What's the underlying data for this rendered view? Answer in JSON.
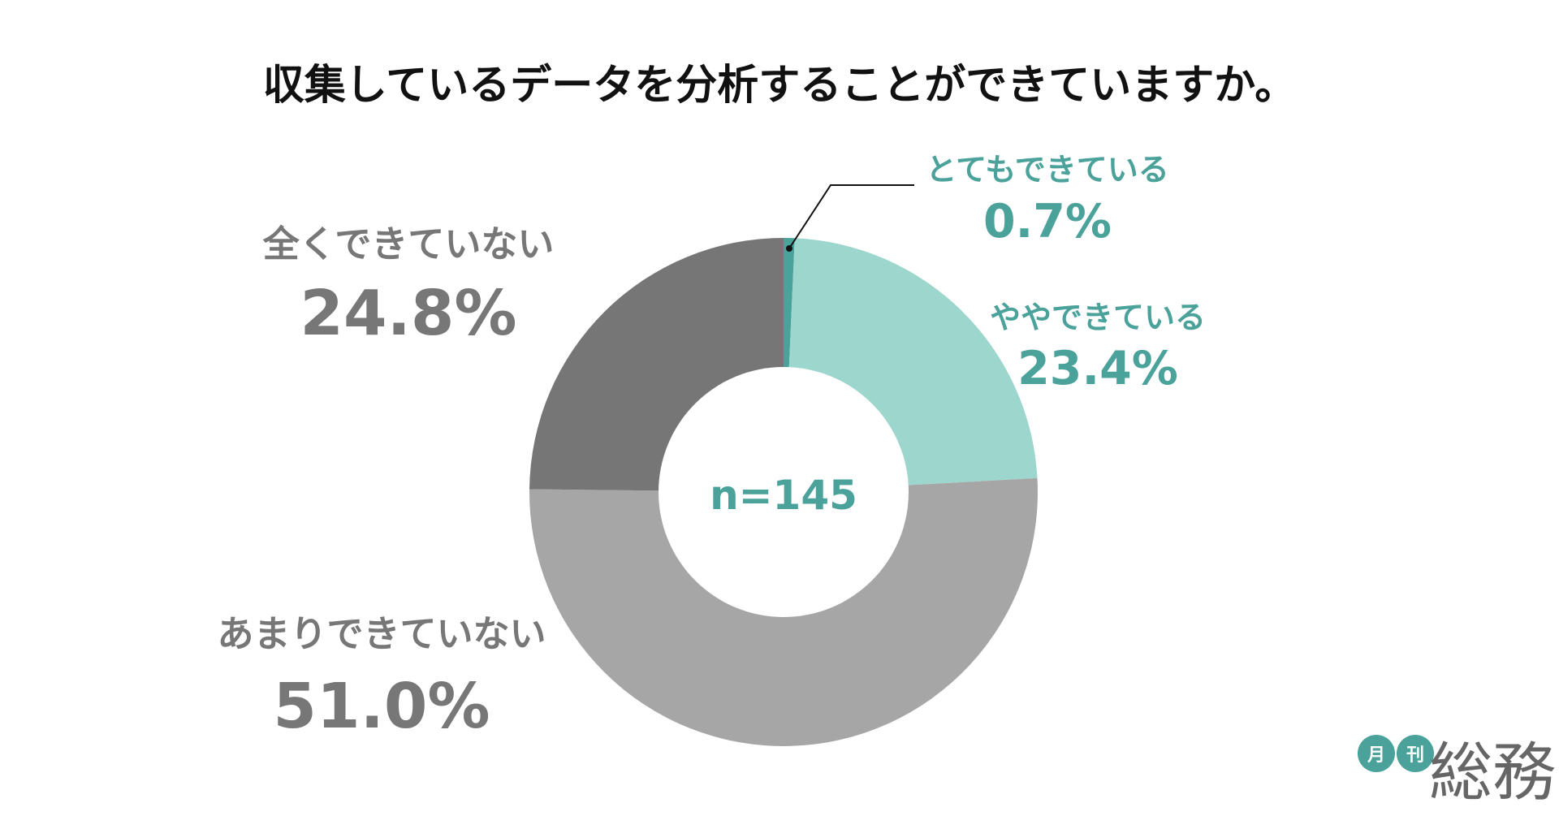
{
  "chart_data": {
    "type": "pie",
    "title": "収集しているデータを分析することができていますか。",
    "center_label": "n=145",
    "slices": [
      {
        "label": "とてもできている",
        "value": 0.7,
        "display": "0.7%",
        "color": "#4aa29b",
        "label_color": "#4aa29b"
      },
      {
        "label": "ややできている",
        "value": 23.4,
        "display": "23.4%",
        "color": "#9cd6cd",
        "label_color": "#4aa29b"
      },
      {
        "label": "あまりできていない",
        "value": 51.0,
        "display": "51.0%",
        "color": "#a6a6a6",
        "label_color": "#777777"
      },
      {
        "label": "全くできていない",
        "value": 24.8,
        "display": "24.8%",
        "color": "#767676",
        "label_color": "#777777"
      }
    ]
  },
  "logo": {
    "badge_1": "月",
    "badge_2": "刊",
    "wordmark": "総務",
    "badge_color": "#4aa29b",
    "wordmark_color": "#666666"
  }
}
